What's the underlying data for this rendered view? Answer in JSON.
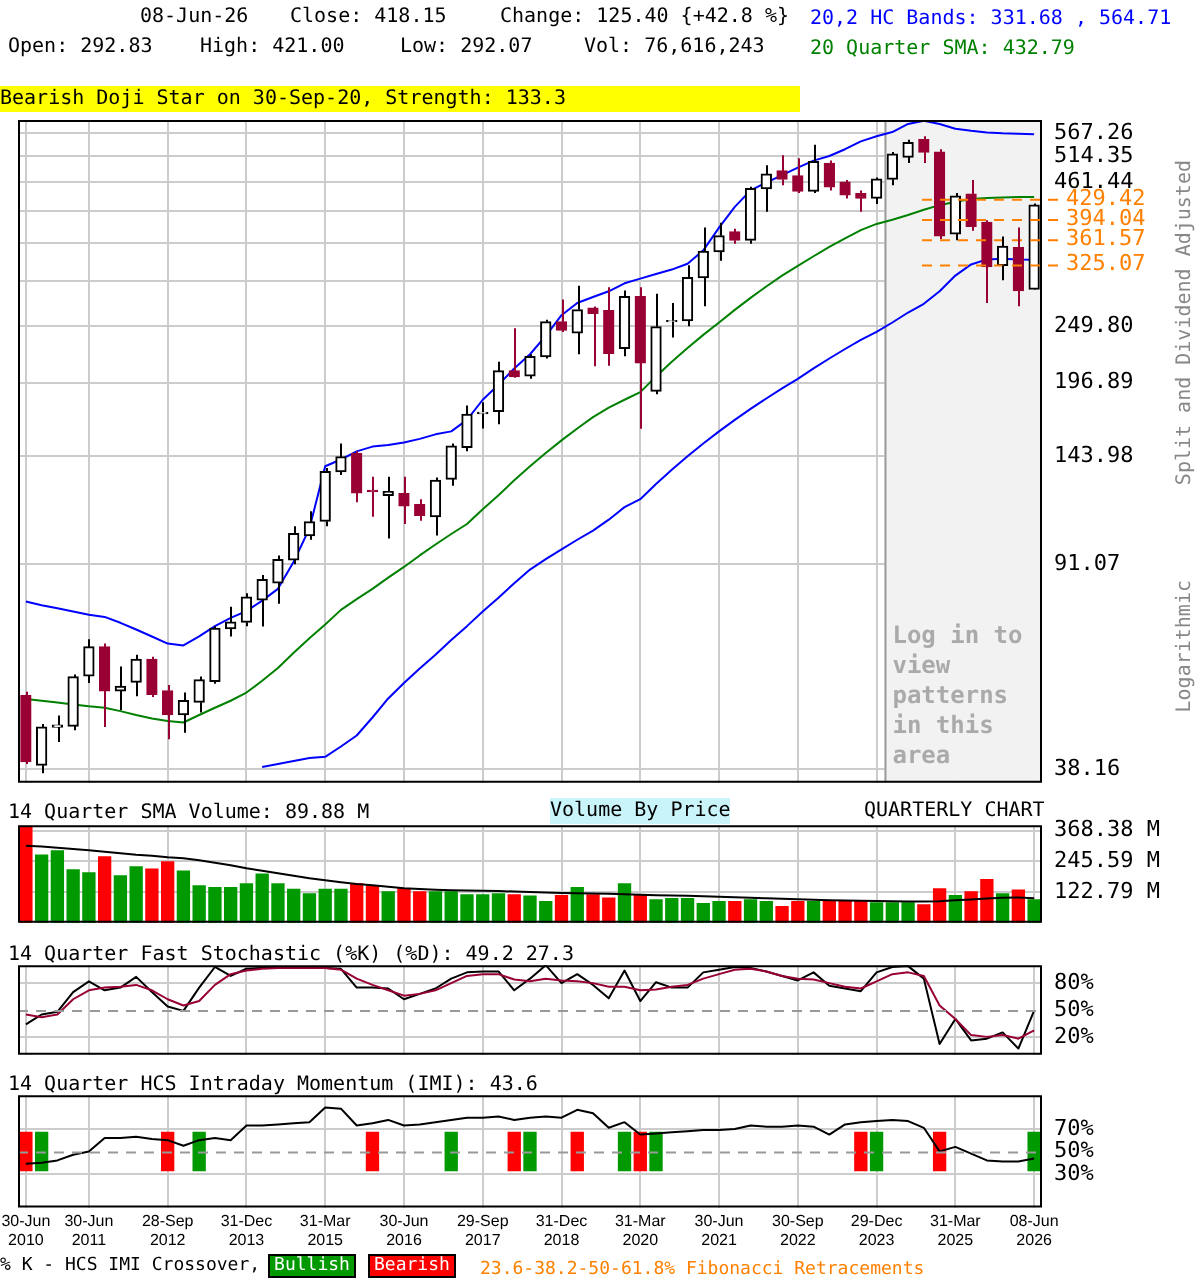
{
  "chart_data": [
    {
      "type": "candlestick",
      "categories": [
        "30-Jun 2010",
        null,
        null,
        null,
        "30-Jun 2011",
        null,
        null,
        null,
        null,
        "28-Sep 2012",
        null,
        null,
        null,
        null,
        "31-Dec 2013",
        null,
        null,
        null,
        null,
        "31-Mar 2015",
        null,
        null,
        null,
        null,
        "30-Jun 2016",
        null,
        null,
        null,
        null,
        "29-Sep 2017",
        null,
        null,
        null,
        null,
        "31-Dec 2018",
        null,
        null,
        null,
        null,
        "31-Mar 2020",
        null,
        null,
        null,
        null,
        "30-Jun 2021",
        null,
        null,
        null,
        null,
        "30-Sep 2022",
        null,
        null,
        null,
        null,
        "29-Dec 2023",
        null,
        null,
        null,
        null,
        "31-Mar 2025",
        null,
        null,
        null,
        null,
        "08-Jun 2026"
      ],
      "ohlc": [
        [
          52.1,
          53,
          39,
          39.4
        ],
        [
          38.8,
          46.2,
          37.5,
          45.6
        ],
        [
          45.6,
          47.9,
          42.8,
          46
        ],
        [
          45.8,
          57,
          45,
          56.4
        ],
        [
          56.7,
          66.2,
          55,
          64.1
        ],
        [
          64.1,
          65,
          45.6,
          53.2
        ],
        [
          53.2,
          59,
          49,
          54.2
        ],
        [
          55.2,
          62,
          52,
          60.8
        ],
        [
          60.8,
          61.5,
          51.8,
          52.4
        ],
        [
          53.2,
          54.5,
          43.3,
          48.1
        ],
        [
          48.1,
          52.8,
          44.5,
          51
        ],
        [
          50.7,
          56.5,
          48.5,
          55.7
        ],
        [
          55.4,
          70,
          54.8,
          69.3
        ],
        [
          69.3,
          76,
          67,
          71.2
        ],
        [
          71.2,
          80.5,
          70,
          79.2
        ],
        [
          78.3,
          87,
          69.9,
          85.3
        ],
        [
          84.1,
          94.5,
          77,
          92.8
        ],
        [
          92.8,
          107,
          91,
          103.6
        ],
        [
          102.8,
          114,
          101,
          109
        ],
        [
          109.3,
          137,
          107,
          134.9
        ],
        [
          134.9,
          152,
          133,
          143.5
        ],
        [
          145.5,
          147,
          118.4,
          123.3
        ],
        [
          124.5,
          132,
          111.4,
          123.9
        ],
        [
          122,
          132,
          101.5,
          123.9
        ],
        [
          122.9,
          132,
          108,
          116.6
        ],
        [
          117.2,
          120,
          109.5,
          112
        ],
        [
          111.4,
          131.5,
          102.8,
          130
        ],
        [
          130.7,
          152,
          127,
          150.3
        ],
        [
          149.5,
          178.5,
          147,
          172
        ],
        [
          172.6,
          181,
          162,
          173.5
        ],
        [
          174.3,
          215,
          165,
          206.8
        ],
        [
          206.8,
          248,
          201,
          201.9
        ],
        [
          202.5,
          222,
          200,
          219.8
        ],
        [
          219.8,
          257,
          218,
          254.7
        ],
        [
          254.7,
          280,
          244,
          246
        ],
        [
          243,
          297,
          222,
          268
        ],
        [
          270,
          272,
          211,
          264
        ],
        [
          267.2,
          295,
          211.3,
          222.9
        ],
        [
          227.7,
          291,
          220,
          283.5
        ],
        [
          283.5,
          295,
          161.8,
          214.1
        ],
        [
          189.9,
          287,
          187.4,
          249.4
        ],
        [
          255,
          276,
          238.3,
          256
        ],
        [
          256,
          324,
          250,
          307.2
        ],
        [
          307.2,
          380,
          272.2,
          343.4
        ],
        [
          343.4,
          388,
          330,
          367
        ],
        [
          373,
          378,
          355,
          360.3
        ],
        [
          360.3,
          452,
          355,
          448.5
        ],
        [
          448.5,
          495,
          406.3,
          477
        ],
        [
          483.3,
          516.7,
          455,
          466.8
        ],
        [
          473,
          510,
          440,
          443.7
        ],
        [
          443.7,
          540,
          440,
          503
        ],
        [
          499,
          505,
          445,
          452
        ],
        [
          460.7,
          465,
          430,
          436.7
        ],
        [
          439,
          445,
          406.3,
          430.9
        ],
        [
          430.9,
          470,
          420,
          466.8
        ],
        [
          466.8,
          523.6,
          455,
          519
        ],
        [
          512.6,
          552,
          500,
          545
        ],
        [
          552,
          560,
          500,
          523.6
        ],
        [
          523.6,
          530,
          362,
          367
        ],
        [
          370,
          440,
          360,
          434.4
        ],
        [
          437.9,
          465,
          375,
          382.2
        ],
        [
          388.3,
          392,
          276,
          322.2
        ],
        [
          323.9,
          366,
          304,
          350.8
        ],
        [
          349,
          380.1,
          272.2,
          291
        ],
        [
          292.83,
          421,
          292.07,
          418.15
        ]
      ],
      "series": [
        {
          "name": "20,2 HC Bands: 331.68 , 564.71",
          "type": "line",
          "color": "#0000ff",
          "values": [
            77.7,
            76.5,
            75.5,
            74.5,
            73.5,
            72.8,
            71,
            69,
            67,
            65,
            64.5,
            67,
            70,
            72.5,
            74.6,
            78,
            82,
            92,
            106,
            138,
            142,
            147,
            150,
            151,
            152.6,
            155,
            158,
            160,
            168,
            183,
            195,
            209,
            222,
            240,
            262,
            276,
            283,
            290,
            300,
            306,
            312,
            318,
            326,
            345,
            380,
            415,
            445,
            460,
            475,
            490,
            505,
            515,
            530,
            548,
            560,
            570,
            590,
            598,
            590,
            578,
            573,
            569,
            567,
            566,
            564.71
          ]
        },
        {
          "type": "line",
          "color": "#0000ff",
          "values": [
            null,
            null,
            null,
            null,
            null,
            null,
            null,
            null,
            null,
            null,
            null,
            null,
            null,
            null,
            null,
            38.5,
            39,
            39.5,
            40,
            40.2,
            42,
            44,
            47.5,
            51.5,
            55,
            58.5,
            62,
            66,
            70,
            74.5,
            79,
            84,
            89,
            93,
            97,
            101,
            105,
            110,
            116,
            120,
            128,
            136,
            144,
            152,
            160,
            168,
            176,
            184,
            192,
            200,
            209,
            218,
            227,
            236,
            244,
            254,
            265,
            275,
            290,
            310,
            325,
            332,
            333,
            332,
            331.68
          ]
        },
        {
          "name": "20 Quarter SMA: 432.79",
          "type": "line",
          "color": "#008000",
          "values": [
            51.4,
            51,
            50.6,
            50.2,
            49.8,
            49.5,
            48.8,
            48,
            47.3,
            46.8,
            46.5,
            48,
            49.5,
            51,
            52.8,
            55.5,
            58.6,
            62.5,
            66.5,
            70.5,
            75,
            78.5,
            82,
            86,
            90,
            94.5,
            99,
            103.5,
            108,
            115,
            122,
            130,
            138,
            146,
            154,
            162,
            170,
            177,
            183,
            189,
            202,
            215,
            228,
            241,
            254,
            268,
            282,
            296,
            310,
            323,
            336.5,
            350,
            363,
            376,
            386,
            393,
            401,
            410,
            418,
            424,
            429,
            431,
            432,
            432.5,
            432.79
          ]
        }
      ],
      "log": true,
      "ylim": [
        36,
        600
      ],
      "yticks": [
        {
          "value": 38.16,
          "label": "38.16"
        },
        {
          "value": 91.07,
          "label": "91.07"
        },
        {
          "value": 143.98,
          "label": "143.98"
        },
        {
          "value": 196.89,
          "label": "196.89"
        },
        {
          "value": 249.8,
          "label": "249.80"
        },
        {
          "value": 302.71,
          "label": null
        },
        {
          "value": 355.62,
          "label": null
        },
        {
          "value": 408.53,
          "label": null
        },
        {
          "value": 461.44,
          "label": "461.44"
        },
        {
          "value": 514.35,
          "label": "514.35"
        },
        {
          "value": 567.26,
          "label": "567.26"
        }
      ],
      "grid": true,
      "tick_labels": "y",
      "legend": "top right",
      "ylabel": "Split and Dividend Adjusted",
      "ref_lines": [
        {
          "axis": "y",
          "value": 429.42,
          "label": "429.42",
          "color": "#ff8000",
          "line_style": "dashed"
        },
        {
          "axis": "y",
          "value": 394.04,
          "label": "394.04",
          "color": "#ff8000",
          "line_style": "dashed"
        },
        {
          "axis": "y",
          "value": 361.57,
          "label": "361.57",
          "color": "#ff8000",
          "line_style": "dashed"
        },
        {
          "axis": "y",
          "value": 325.07,
          "label": "325.07",
          "color": "#ff8000",
          "line_style": "dashed"
        }
      ],
      "bands": [
        {
          "axis": "x",
          "from": "29-Dec 2023",
          "to": "08-Jun 2026",
          "label": "Log in to view patterns in this area",
          "color": "#f2f2f2"
        }
      ],
      "annotations": [
        "08-Jun-26",
        "Close: 418.15",
        "Change: 125.40 {+42.8 %}",
        "Open: 292.83",
        "High: 421.00",
        "Low: 292.07",
        "Vol: 76,616,243",
        "Bearish Doji Star on 30-Sep-20, Strength: 133.3",
        "Logarithmic"
      ]
    },
    {
      "type": "bar",
      "categories": [
        "30-Jun 2010",
        null,
        null,
        null,
        "30-Jun 2011",
        null,
        null,
        null,
        null,
        "28-Sep 2012",
        null,
        null,
        null,
        null,
        "31-Dec 2013",
        null,
        null,
        null,
        null,
        "31-Mar 2015",
        null,
        null,
        null,
        null,
        "30-Jun 2016",
        null,
        null,
        null,
        null,
        "29-Sep 2017",
        null,
        null,
        null,
        null,
        "31-Dec 2018",
        null,
        null,
        null,
        null,
        "31-Mar 2020",
        null,
        null,
        null,
        null,
        "30-Jun 2021",
        null,
        null,
        null,
        null,
        "30-Sep 2022",
        null,
        null,
        null,
        null,
        "29-Dec 2023",
        null,
        null,
        null,
        null,
        "31-Mar 2025",
        null,
        null,
        null,
        null,
        "08-Jun 2026"
      ],
      "series": [
        {
          "values": [
            385,
            270,
            287,
            211,
            199,
            263,
            187,
            223,
            214,
            243,
            206,
            147,
            140,
            140,
            155,
            194,
            155,
            133,
            115,
            133,
            133,
            155,
            147,
            123,
            135,
            123,
            123,
            123,
            111,
            111,
            115,
            111,
            106,
            84,
            108,
            140,
            111,
            98,
            155,
            111,
            91,
            96,
            96,
            76,
            84,
            84,
            91,
            84,
            64,
            84,
            84,
            86,
            86,
            86,
            79,
            79,
            79,
            71,
            135,
            108,
            123,
            172,
            115,
            130,
            91
          ],
          "colors": [
            "#ff0000",
            "#009900",
            "#009900",
            "#009900",
            "#009900",
            "#ff0000",
            "#009900",
            "#009900",
            "#ff0000",
            "#ff0000",
            "#009900",
            "#009900",
            "#009900",
            "#009900",
            "#009900",
            "#009900",
            "#009900",
            "#009900",
            "#009900",
            "#009900",
            "#009900",
            "#ff0000",
            "#ff0000",
            "#009900",
            "#ff0000",
            "#ff0000",
            "#009900",
            "#009900",
            "#009900",
            "#009900",
            "#009900",
            "#ff0000",
            "#009900",
            "#009900",
            "#ff0000",
            "#009900",
            "#ff0000",
            "#ff0000",
            "#009900",
            "#ff0000",
            "#009900",
            "#009900",
            "#009900",
            "#009900",
            "#009900",
            "#ff0000",
            "#009900",
            "#009900",
            "#ff0000",
            "#ff0000",
            "#009900",
            "#ff0000",
            "#ff0000",
            "#ff0000",
            "#009900",
            "#009900",
            "#009900",
            "#ff0000",
            "#ff0000",
            "#009900",
            "#ff0000",
            "#ff0000",
            "#009900",
            "#ff0000",
            "#009900"
          ]
        },
        {
          "name": "14 Quarter SMA Volume: 89.88 M",
          "type": "line",
          "color": "#000000",
          "values": [
            308,
            305,
            300,
            295,
            290,
            284,
            278,
            272,
            268,
            262,
            258,
            250,
            240,
            230,
            218,
            208,
            198,
            188,
            178,
            170,
            162,
            155,
            150,
            144,
            138,
            135,
            132,
            130,
            129,
            128,
            127,
            125,
            123,
            121,
            119,
            118,
            117,
            116,
            114,
            112,
            110,
            109,
            108,
            106,
            104,
            102,
            100,
            98,
            96,
            94,
            92,
            90,
            89,
            88,
            87,
            86,
            85,
            85,
            86,
            90,
            93,
            97,
            100,
            101,
            98
          ]
        }
      ],
      "ylim": [
        0,
        390
      ],
      "yticks": [
        {
          "value": 122.79,
          "label": "122.79 M"
        },
        {
          "value": 245.59,
          "label": "245.59 M"
        },
        {
          "value": 368.38,
          "label": "368.38 M"
        }
      ],
      "grid": true,
      "tick_labels": "y",
      "legend": "top left",
      "annotations": [
        "Volume By Price",
        "QUARTERLY CHART"
      ]
    },
    {
      "type": "line",
      "title": "14 Quarter Fast Stochastic (%K) (%D): 49.2 27.3",
      "categories": [
        "30-Jun 2010",
        null,
        null,
        null,
        "30-Jun 2011",
        null,
        null,
        null,
        null,
        "28-Sep 2012",
        null,
        null,
        null,
        null,
        "31-Dec 2013",
        null,
        null,
        null,
        null,
        "31-Mar 2015",
        null,
        null,
        null,
        null,
        "30-Jun 2016",
        null,
        null,
        null,
        null,
        "29-Sep 2017",
        null,
        null,
        null,
        null,
        "31-Dec 2018",
        null,
        null,
        null,
        null,
        "31-Mar 2020",
        null,
        null,
        null,
        null,
        "30-Jun 2021",
        null,
        null,
        null,
        null,
        "30-Sep 2022",
        null,
        null,
        null,
        null,
        "29-Dec 2023",
        null,
        null,
        null,
        null,
        "31-Mar 2025",
        null,
        null,
        null,
        null,
        "08-Jun 2026"
      ],
      "series": [
        {
          "color": "#990033",
          "values": [
            45,
            42,
            45,
            62,
            72,
            75,
            76,
            78,
            72,
            62,
            55,
            60,
            78,
            90,
            94,
            96,
            97,
            97,
            97,
            97,
            95,
            85,
            78,
            72,
            66,
            68,
            72,
            80,
            88,
            90,
            90,
            84,
            82,
            85,
            83,
            82,
            80,
            76,
            76,
            72,
            73,
            76,
            78,
            85,
            90,
            95,
            96,
            93,
            88,
            85,
            84,
            80,
            76,
            74,
            82,
            90,
            92,
            88,
            55,
            40,
            22,
            20,
            22,
            18,
            27.3
          ]
        },
        {
          "color": "#000000",
          "values": [
            34,
            45,
            48,
            70,
            82,
            72,
            75,
            87,
            70,
            54,
            49,
            75,
            98,
            88,
            96,
            97,
            97,
            97,
            97,
            97,
            96,
            75,
            75,
            74,
            62,
            68,
            74,
            85,
            92,
            93,
            93,
            72,
            85,
            100,
            80,
            90,
            78,
            63,
            94,
            60,
            81,
            75,
            75,
            92,
            95,
            98,
            97,
            93,
            88,
            83,
            92,
            77,
            74,
            71,
            92,
            98,
            99,
            85,
            12,
            40,
            16,
            18,
            25,
            7,
            49.2
          ]
        }
      ],
      "ylim": [
        0,
        100
      ],
      "yticks": [
        {
          "value": 20,
          "label": "20%"
        },
        {
          "value": 50,
          "label": "50%"
        },
        {
          "value": 80,
          "label": "80%"
        }
      ],
      "grid": true,
      "tick_labels": "y",
      "ref_lines": [
        {
          "axis": "y",
          "value": 50,
          "color": "#999999",
          "line_style": "dashed"
        }
      ]
    },
    {
      "type": "line",
      "title": "14 Quarter HCS Intraday Momentum (IMI): 43.6",
      "categories": [
        "30-Jun 2010",
        null,
        null,
        null,
        "30-Jun 2011",
        null,
        null,
        null,
        null,
        "28-Sep 2012",
        null,
        null,
        null,
        null,
        "31-Dec 2013",
        null,
        null,
        null,
        null,
        "31-Mar 2015",
        null,
        null,
        null,
        null,
        "30-Jun 2016",
        null,
        null,
        null,
        null,
        "29-Sep 2017",
        null,
        null,
        null,
        null,
        "31-Dec 2018",
        null,
        null,
        null,
        null,
        "31-Mar 2020",
        null,
        null,
        null,
        null,
        "30-Jun 2021",
        null,
        null,
        null,
        null,
        "30-Sep 2022",
        null,
        null,
        null,
        null,
        "29-Dec 2023",
        null,
        null,
        null,
        null,
        "31-Mar 2025",
        null,
        null,
        null,
        null,
        "08-Jun 2026"
      ],
      "series": [
        {
          "color": "#000000",
          "values": [
            39,
            40,
            42,
            47,
            50,
            62,
            62,
            63,
            61,
            60,
            55,
            60,
            62,
            60,
            73,
            73,
            74,
            75,
            76,
            89,
            88,
            73,
            75,
            78,
            73,
            74,
            76,
            78,
            80,
            80,
            81,
            78,
            80,
            81,
            80,
            87,
            84,
            71,
            76,
            65,
            66,
            67,
            68,
            69,
            69,
            70,
            73,
            72,
            72,
            73,
            72,
            65,
            74,
            76,
            77,
            78,
            77,
            71,
            50,
            54,
            48,
            42,
            41,
            41,
            43.6
          ]
        },
        {
          "name": "Bullish",
          "type": "bar",
          "color": "#009900",
          "values": [
            null,
            34,
            null,
            null,
            null,
            null,
            null,
            null,
            null,
            null,
            null,
            34,
            null,
            null,
            null,
            null,
            null,
            null,
            null,
            null,
            null,
            null,
            null,
            null,
            null,
            null,
            null,
            34,
            null,
            null,
            null,
            null,
            34,
            null,
            null,
            null,
            null,
            null,
            34,
            null,
            34,
            null,
            null,
            null,
            null,
            null,
            null,
            null,
            null,
            null,
            null,
            null,
            null,
            null,
            34,
            null,
            null,
            null,
            null,
            null,
            null,
            null,
            null,
            null,
            34
          ],
          "base": [
            null,
            33,
            null,
            null,
            null,
            null,
            null,
            null,
            null,
            null,
            null,
            33,
            null,
            null,
            null,
            null,
            null,
            null,
            null,
            null,
            null,
            null,
            null,
            null,
            null,
            null,
            null,
            33,
            null,
            null,
            null,
            null,
            33,
            null,
            null,
            null,
            null,
            null,
            33,
            null,
            33,
            null,
            null,
            null,
            null,
            null,
            null,
            null,
            null,
            null,
            null,
            null,
            null,
            null,
            33,
            null,
            null,
            null,
            null,
            null,
            null,
            null,
            null,
            null,
            33
          ]
        },
        {
          "name": "Bearish",
          "type": "bar",
          "color": "#ff0000",
          "values": [
            34,
            null,
            null,
            null,
            null,
            null,
            null,
            null,
            null,
            34,
            null,
            null,
            null,
            null,
            null,
            null,
            null,
            null,
            null,
            null,
            null,
            null,
            34,
            null,
            null,
            null,
            null,
            null,
            null,
            null,
            null,
            34,
            null,
            null,
            null,
            34,
            null,
            null,
            null,
            34,
            null,
            null,
            null,
            null,
            null,
            null,
            null,
            null,
            null,
            null,
            null,
            null,
            null,
            34,
            null,
            null,
            null,
            null,
            34,
            null,
            null,
            null,
            null,
            null,
            null
          ],
          "base": [
            33,
            null,
            null,
            null,
            null,
            null,
            null,
            null,
            null,
            33,
            null,
            null,
            null,
            null,
            null,
            null,
            null,
            null,
            null,
            null,
            null,
            null,
            33,
            null,
            null,
            null,
            null,
            null,
            null,
            null,
            null,
            33,
            null,
            null,
            null,
            33,
            null,
            null,
            null,
            33,
            null,
            null,
            null,
            null,
            null,
            null,
            null,
            null,
            null,
            null,
            null,
            null,
            null,
            33,
            null,
            null,
            null,
            null,
            33,
            null,
            null,
            null,
            null,
            null,
            null
          ]
        }
      ],
      "ylim": [
        0,
        100
      ],
      "yticks": [
        {
          "value": 30,
          "label": "30%"
        },
        {
          "value": 50,
          "label": "50%"
        },
        {
          "value": 70,
          "label": "70%"
        }
      ],
      "grid": true,
      "legend": "bottom",
      "legend_title": "% K - HCS IMI Crossover,",
      "ref_lines": [
        {
          "axis": "y",
          "value": 50,
          "color": "#999999",
          "line_style": "dashed"
        }
      ],
      "annotations": [
        "23.6-38.2-50-61.8% Fibonacci Retracements"
      ]
    }
  ]
}
